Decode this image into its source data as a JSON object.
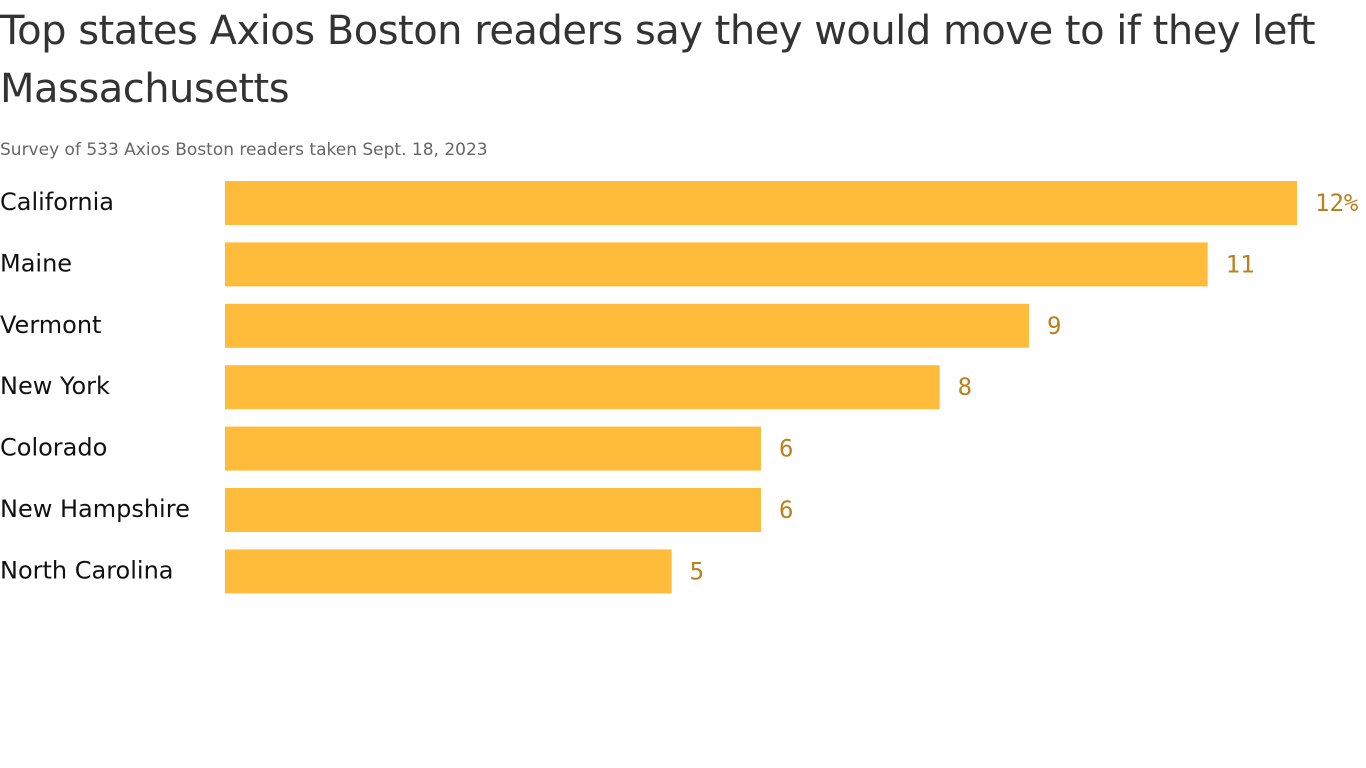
{
  "chart_data": {
    "type": "bar",
    "orientation": "horizontal",
    "title": "Top states Axios Boston readers say they would move to if they left Massachusetts",
    "subtitle": "Survey of 533 Axios Boston readers taken Sept. 18, 2023",
    "categories": [
      "California",
      "Maine",
      "Vermont",
      "New York",
      "Colorado",
      "New Hampshire",
      "North Carolina"
    ],
    "values": [
      12,
      11,
      9,
      8,
      6,
      6,
      5
    ],
    "value_labels": [
      "12%",
      "11",
      "9",
      "8",
      "6",
      "6",
      "5"
    ],
    "color": "#ffbc3b"
  }
}
